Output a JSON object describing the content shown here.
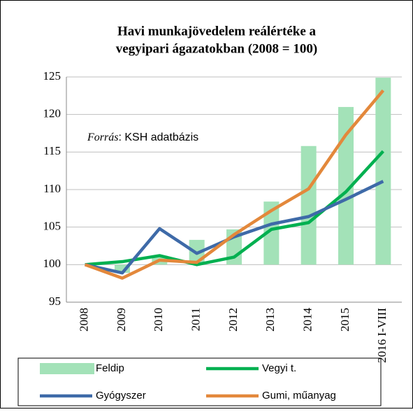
{
  "chart_data": {
    "type": "bar-line",
    "title": [
      "Havi munkajövedelem reálértéke a",
      "vegyipari  ágazatokban (2008 = 100)"
    ],
    "annotation": "Forrás: KSH adatbázis",
    "categories": [
      "2008",
      "2009",
      "2010",
      "2011",
      "2012",
      "2013",
      "2014",
      "2015",
      "2016 I-VIII"
    ],
    "series": [
      {
        "name": "Feldip",
        "type": "bar",
        "color": "#a3e2b8",
        "values": [
          100,
          98.9,
          101.2,
          103.3,
          104.7,
          108.4,
          115.8,
          121.0,
          124.9
        ]
      },
      {
        "name": "Vegyi t.",
        "type": "line",
        "color": "#00b050",
        "values": [
          100,
          100.4,
          101.2,
          100,
          101,
          104.7,
          105.6,
          109.7,
          115.1
        ]
      },
      {
        "name": "Gyógyszer",
        "type": "line",
        "color": "#3e6aa8",
        "values": [
          100,
          98.9,
          104.8,
          101.5,
          103.7,
          105.4,
          106.4,
          108.7,
          111.1
        ]
      },
      {
        "name": "Gumi, műanyag",
        "type": "line",
        "color": "#e3883b",
        "values": [
          100,
          98.2,
          100.6,
          100.3,
          104,
          107.2,
          110.1,
          117.3,
          123.2
        ]
      }
    ],
    "ylim": [
      95,
      125
    ],
    "yticks": [
      95,
      100,
      105,
      110,
      115,
      120,
      125
    ],
    "grid": true,
    "bar_base": 100
  }
}
